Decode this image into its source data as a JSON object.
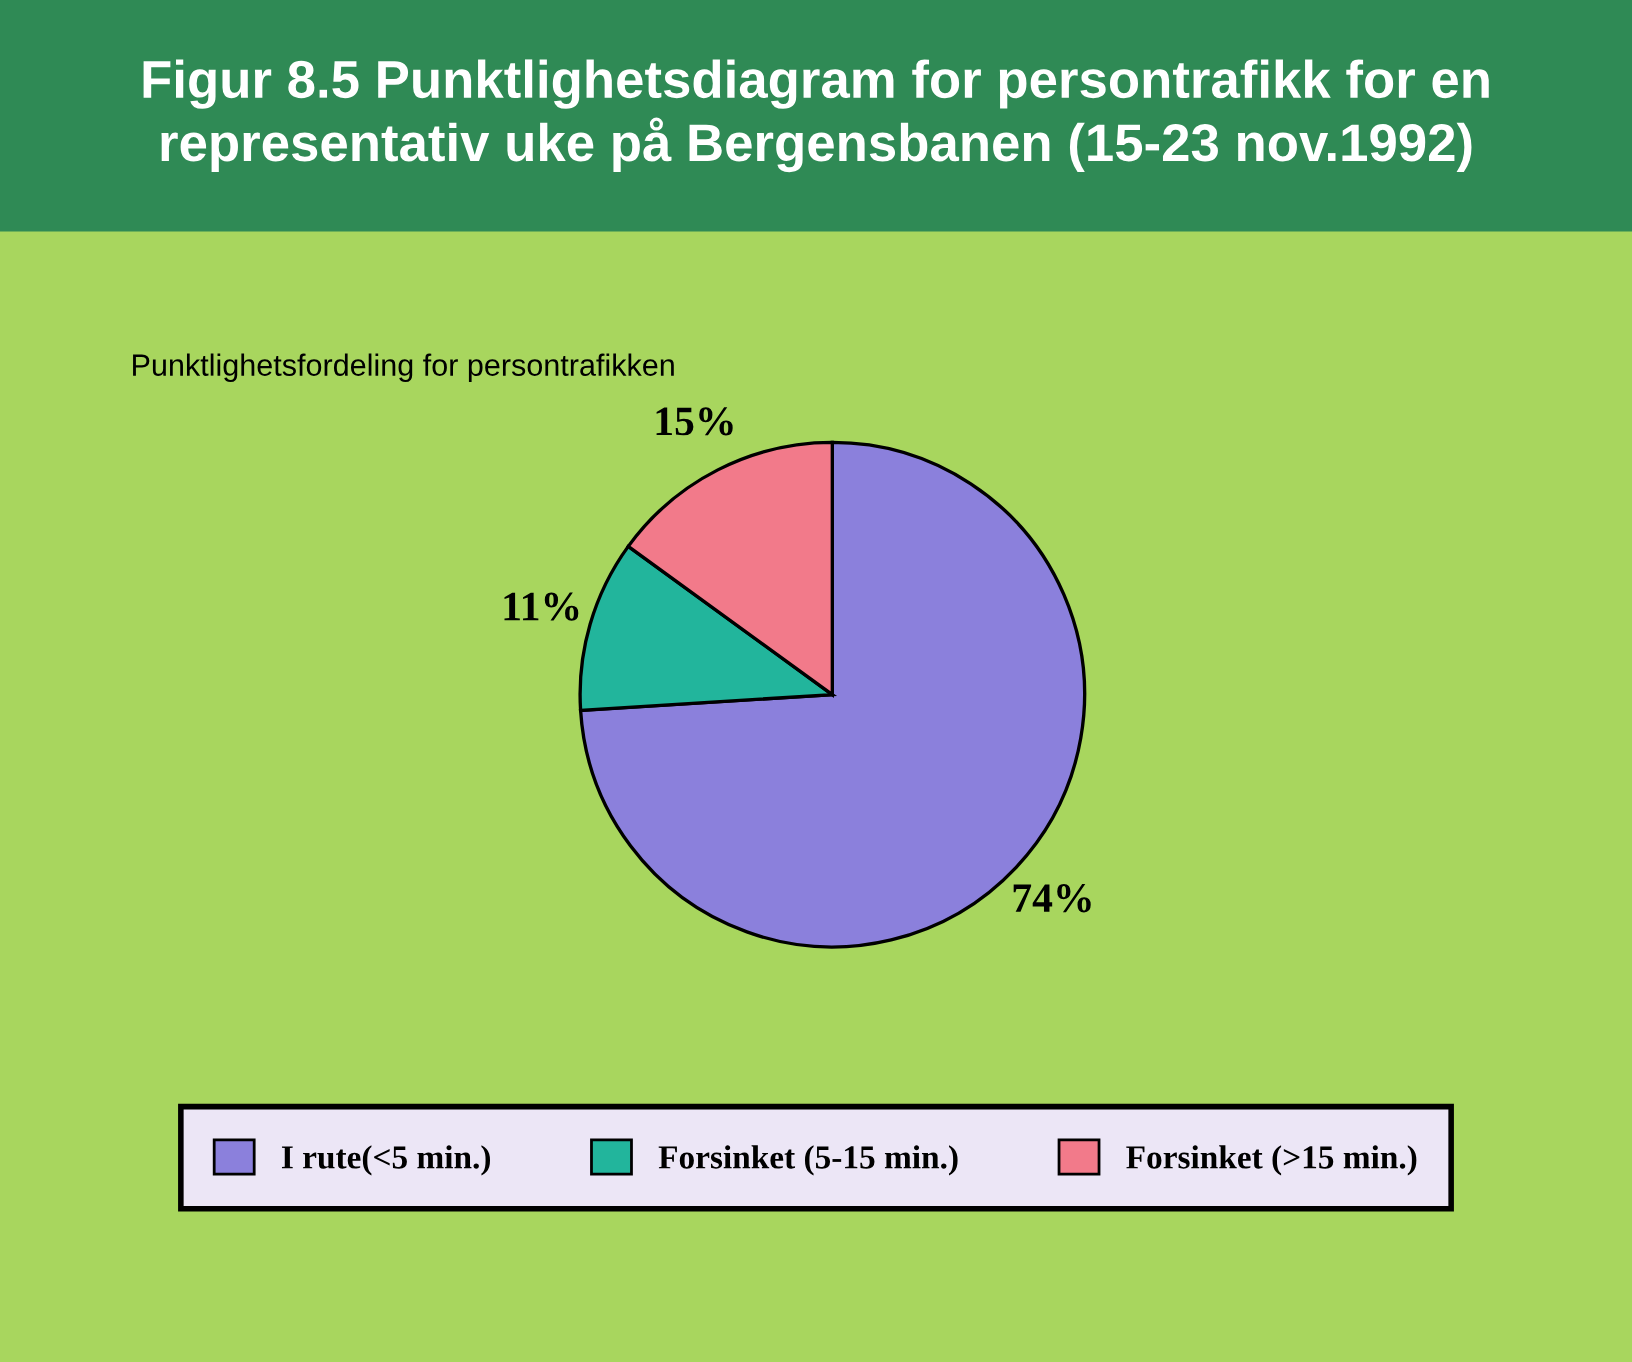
{
  "chart_data": {
    "type": "pie",
    "title": "Figur 8.5 Punktlighetsdiagram for persontrafikk for en representativ uke på Bergensbanen (15-23 nov.1992)",
    "subtitle": "Punktlighetsfordeling for persontrafikken",
    "categories": [
      "I rute(<5 min.)",
      "Forsinket (5-15 min.)",
      "Forsinket (>15 min.)"
    ],
    "values": [
      74,
      11,
      15
    ],
    "value_labels": [
      "74%",
      "11%",
      "15%"
    ],
    "colors": [
      "#8b80dc",
      "#22b59c",
      "#f27a8a"
    ],
    "legend": "bottom"
  }
}
